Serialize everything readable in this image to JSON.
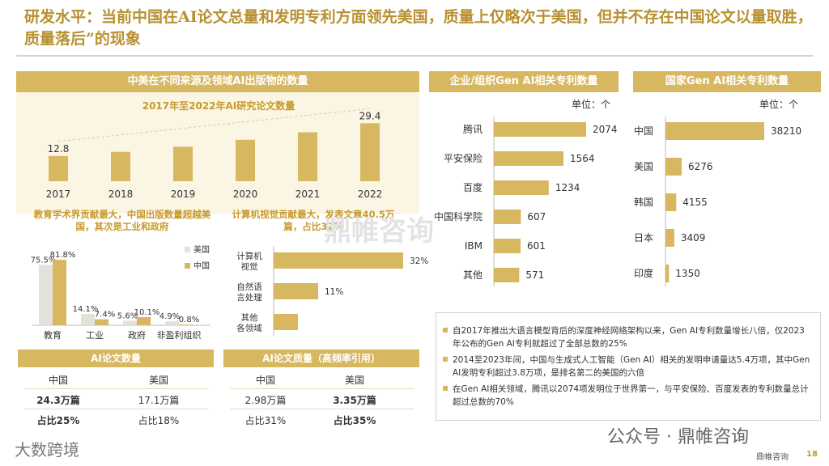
{
  "title": "研发水平：当前中国在AI论文总量和发明专利方面领先美国，质量上仅略次于美国，但并不存在中国论文以量取胜，质量落后”的现象",
  "left_panel": {
    "header": "中美在不同来源及领域AI出版物的数量",
    "papers_subtitle": "2017年至2022年AI研究论文数量",
    "edu_title": "教育学术界贡献最大，中国出版数量超越美国，其次是工业和政府",
    "cv_title": "计算机视觉贡献最大，发表文章40.5万篇，占比32%",
    "count_box": {
      "header": "AI论文数量",
      "col1": "中国",
      "col2": "美国",
      "v1": "24.3万篇",
      "v2": "17.1万篇",
      "p1": "占比25%",
      "p2": "占比18%"
    },
    "quality_box": {
      "header": "AI论文质量（高频率引用）",
      "col1": "中国",
      "col2": "美国",
      "v1": "2.98万篇",
      "v2": "3.35万篇",
      "p1": "占比31%",
      "p2": "占比35%"
    }
  },
  "corp_panel": {
    "header": "企业/组织Gen AI相关专利数量",
    "unit": "单位：个"
  },
  "country_panel": {
    "header": "国家Gen AI相关专利数量",
    "unit": "单位：个"
  },
  "notes": [
    "自2017年推出大语言模型背后的深度神经网络架构以来，Gen AI专利数量增长八倍，仅2023年公布的Gen AI专利就超过了全部总数的25%",
    "2014至2023年间，中国与生成式人工智能（Gen AI）相关的发明申请量达5.4万项，其中Gen AI发明专利超过3.8万项，是排名第二的美国的六倍",
    "在Gen AI相关领域，腾讯以2074项发明位于世界第一，与平安保险、百度发表的专利数量总计超过总数的70%"
  ],
  "watermarks": {
    "center": "鼎帷咨询",
    "bottom_left": "大数跨境",
    "bottom_right": "公众号 · 鼎帷咨询",
    "footer_brand": "鼎帷咨询",
    "page_number": "18"
  },
  "colors": {
    "gold": "#d7b760",
    "gold_dark": "#c79a2c",
    "grey_bar": "#e4e1da"
  },
  "chart_data": [
    {
      "type": "bar",
      "title": "2017年至2022年AI研究论文数量",
      "categories": [
        "2017",
        "2018",
        "2019",
        "2020",
        "2021",
        "2022"
      ],
      "values": [
        12.8,
        14.9,
        17.5,
        21.0,
        24.8,
        29.4
      ],
      "value_labels": [
        "12.8",
        "",
        "",
        "",
        "",
        "29.4"
      ]
    },
    {
      "type": "bar",
      "title": "教育学术界贡献最大，中国出版数量超越美国，其次是工业和政府",
      "categories": [
        "教育",
        "工业",
        "政府",
        "非盈利组织"
      ],
      "series": [
        {
          "name": "美国",
          "values": [
            75.5,
            14.1,
            5.6,
            4.9
          ],
          "labels": [
            "75.5%",
            "14.1%",
            "5.6%",
            "4.9%"
          ]
        },
        {
          "name": "中国",
          "values": [
            81.8,
            7.4,
            10.1,
            0.8
          ],
          "labels": [
            "81.8%",
            "7.4%",
            "10.1%",
            "0.8%"
          ]
        }
      ],
      "legend": "right"
    },
    {
      "type": "bar",
      "orientation": "horizontal",
      "title": "计算机视觉贡献最大，发表文章40.5万篇，占比32%",
      "categories": [
        "计算机视觉",
        "自然语言处理",
        "其他各领域"
      ],
      "display_categories": [
        [
          "计算机",
          "视觉"
        ],
        [
          "自然语",
          "言处理"
        ],
        [
          "其他",
          "各领域"
        ]
      ],
      "values": [
        32,
        11,
        6
      ],
      "value_labels": [
        "32%",
        "11%",
        ""
      ]
    },
    {
      "type": "bar",
      "orientation": "horizontal",
      "title": "企业/组织Gen AI相关专利数量",
      "unit": "单位：个",
      "categories": [
        "腾讯",
        "平安保险",
        "百度",
        "中国科学院",
        "IBM",
        "其他"
      ],
      "values": [
        2074,
        1564,
        1234,
        607,
        601,
        571
      ]
    },
    {
      "type": "bar",
      "orientation": "horizontal",
      "title": "国家Gen AI相关专利数量",
      "unit": "单位：个",
      "categories": [
        "中国",
        "美国",
        "韩国",
        "日本",
        "印度"
      ],
      "values": [
        38210,
        6276,
        4155,
        3409,
        1350
      ]
    }
  ]
}
